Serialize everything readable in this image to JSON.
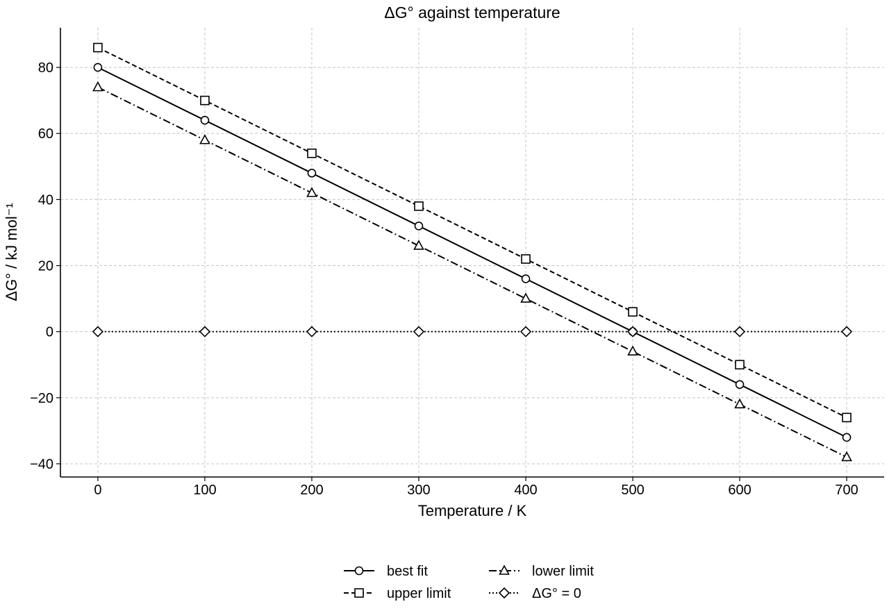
{
  "chart_data": {
    "type": "line",
    "title": "ΔG° against temperature",
    "xlabel": "Temperature / K",
    "ylabel": "ΔG° / kJ mol⁻¹",
    "x": [
      0,
      100,
      200,
      300,
      400,
      500,
      600,
      700
    ],
    "xlim": [
      -35,
      735
    ],
    "ylim": [
      -44,
      92
    ],
    "xticks": [
      0,
      100,
      200,
      300,
      400,
      500,
      600,
      700
    ],
    "yticks": [
      -40,
      -20,
      0,
      20,
      40,
      60,
      80
    ],
    "xtick_labels": [
      "0",
      "100",
      "200",
      "300",
      "400",
      "500",
      "600",
      "700"
    ],
    "ytick_labels": [
      "−40",
      "−20",
      "0",
      "20",
      "40",
      "60",
      "80"
    ],
    "grid": true,
    "legend_position": "bottom-center",
    "series": [
      {
        "name": "best fit",
        "values": [
          80,
          64,
          48,
          32,
          16,
          0,
          -16,
          -32
        ],
        "marker": "circle",
        "linestyle": "solid",
        "color": "#000000"
      },
      {
        "name": "upper limit",
        "values": [
          86,
          70,
          54,
          38,
          22,
          6,
          -10,
          -26
        ],
        "marker": "square",
        "linestyle": "dashed",
        "color": "#000000"
      },
      {
        "name": "lower limit",
        "values": [
          74,
          58,
          42,
          26,
          10,
          -6,
          -22,
          -38
        ],
        "marker": "triangle",
        "linestyle": "dashdot",
        "color": "#000000"
      },
      {
        "name": "ΔG° = 0",
        "values": [
          0,
          0,
          0,
          0,
          0,
          0,
          0,
          0
        ],
        "marker": "diamond",
        "linestyle": "dotted",
        "color": "#000000"
      }
    ]
  }
}
